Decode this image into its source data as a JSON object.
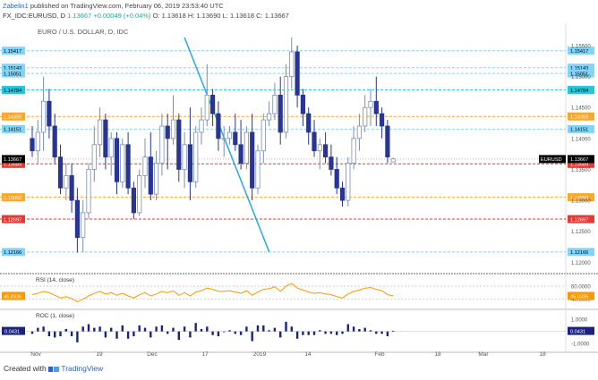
{
  "header": {
    "author": "Zabelin1",
    "published_text": "published on TradingView.com, February 06, 2019 23:53:40 UTC",
    "symbol": "FX_IDC:EURUSD, D",
    "last": "1.13667",
    "change": "+0.00049 (+0.04%)",
    "ohlc": "O: 1.13618  H: 1.13690  L: 1.13618  C: 1.13667"
  },
  "main_title": "EURO / U.S. DOLLAR, D, IDC",
  "footer": {
    "created_with": "Created with",
    "brand": "TradingView"
  },
  "colors": {
    "bear": "#283593",
    "bull_fill": "#ffffff",
    "bull_border": "#7b8fb3",
    "sky": "#81d4fa",
    "teal": "#26c6da",
    "orange": "#ffa726",
    "red": "#e53935",
    "trend": "#29a8e0",
    "rsi": "#ff9800",
    "roc": "#1a237e"
  },
  "chart_data": {
    "type": "candlestick",
    "title": "EURO / U.S. DOLLAR, D, IDC",
    "x_labels": [
      "Nov",
      "19",
      "Dec",
      "17",
      "2019",
      "14",
      "Feb",
      "18",
      "Mar",
      "18"
    ],
    "price_ylim": [
      1.1186,
      1.1563
    ],
    "y_ticks": [
      "1.15500",
      "1.15000",
      "1.14500",
      "1.14000",
      "1.13500",
      "1.13000",
      "1.12500",
      "1.12000"
    ],
    "last_price": "1.13667",
    "last_label": "EURUSD",
    "levels": [
      {
        "value": 1.15417,
        "label": "1.15417",
        "style": "sky"
      },
      {
        "value": 1.15143,
        "label": "1.15143",
        "style": "sky"
      },
      {
        "value": 1.15051,
        "label": "1.15051",
        "style": "sky"
      },
      {
        "value": 1.14784,
        "label": "1.14784",
        "style": "teal"
      },
      {
        "value": 1.14355,
        "label": "1.14355",
        "style": "orange"
      },
      {
        "value": 1.14151,
        "label": "1.14151",
        "style": "sky"
      },
      {
        "value": 1.13589,
        "label": "1.13589",
        "style": "red"
      },
      {
        "value": 1.1305,
        "label": "1.13050",
        "style": "orange"
      },
      {
        "value": 1.12697,
        "label": "1.12697",
        "style": "red"
      },
      {
        "value": 1.12166,
        "label": "1.12166",
        "style": "sky"
      }
    ],
    "trendline": [
      [
        27,
        1.1563
      ],
      [
        42,
        1.1217
      ]
    ],
    "candles": [
      [
        1.14,
        1.142,
        1.137,
        1.138
      ],
      [
        1.138,
        1.143,
        1.136,
        1.141
      ],
      [
        1.141,
        1.15,
        1.138,
        1.146
      ],
      [
        1.146,
        1.148,
        1.14,
        1.142
      ],
      [
        1.142,
        1.144,
        1.136,
        1.137
      ],
      [
        1.137,
        1.139,
        1.131,
        1.132
      ],
      [
        1.132,
        1.136,
        1.13,
        1.134
      ],
      [
        1.134,
        1.136,
        1.128,
        1.13
      ],
      [
        1.13,
        1.132,
        1.1216,
        1.124
      ],
      [
        1.124,
        1.13,
        1.1216,
        1.128
      ],
      [
        1.128,
        1.136,
        1.127,
        1.135
      ],
      [
        1.135,
        1.142,
        1.133,
        1.139
      ],
      [
        1.139,
        1.145,
        1.137,
        1.143
      ],
      [
        1.143,
        1.144,
        1.135,
        1.137
      ],
      [
        1.137,
        1.141,
        1.134,
        1.14
      ],
      [
        1.14,
        1.141,
        1.131,
        1.133
      ],
      [
        1.133,
        1.14,
        1.132,
        1.139
      ],
      [
        1.139,
        1.141,
        1.131,
        1.132
      ],
      [
        1.132,
        1.133,
        1.127,
        1.128
      ],
      [
        1.128,
        1.135,
        1.1275,
        1.134
      ],
      [
        1.134,
        1.14,
        1.132,
        1.137
      ],
      [
        1.137,
        1.141,
        1.13,
        1.131
      ],
      [
        1.131,
        1.138,
        1.13,
        1.136
      ],
      [
        1.136,
        1.144,
        1.134,
        1.142
      ],
      [
        1.142,
        1.144,
        1.135,
        1.14
      ],
      [
        1.14,
        1.147,
        1.139,
        1.143
      ],
      [
        1.143,
        1.144,
        1.133,
        1.135
      ],
      [
        1.135,
        1.141,
        1.132,
        1.139
      ],
      [
        1.139,
        1.145,
        1.13,
        1.133
      ],
      [
        1.133,
        1.142,
        1.132,
        1.141
      ],
      [
        1.141,
        1.145,
        1.139,
        1.143
      ],
      [
        1.143,
        1.152,
        1.142,
        1.147
      ],
      [
        1.147,
        1.148,
        1.142,
        1.144
      ],
      [
        1.144,
        1.146,
        1.138,
        1.14
      ],
      [
        1.14,
        1.142,
        1.137,
        1.14
      ],
      [
        1.14,
        1.142,
        1.139,
        1.141
      ],
      [
        1.141,
        1.144,
        1.138,
        1.139
      ],
      [
        1.139,
        1.143,
        1.135,
        1.136
      ],
      [
        1.136,
        1.142,
        1.135,
        1.141
      ],
      [
        1.141,
        1.144,
        1.13,
        1.132
      ],
      [
        1.132,
        1.139,
        1.131,
        1.138
      ],
      [
        1.138,
        1.144,
        1.136,
        1.143
      ],
      [
        1.143,
        1.146,
        1.142,
        1.144
      ],
      [
        1.144,
        1.149,
        1.143,
        1.147
      ],
      [
        1.147,
        1.15,
        1.139,
        1.141
      ],
      [
        1.141,
        1.152,
        1.14,
        1.15
      ],
      [
        1.15,
        1.1563,
        1.148,
        1.154
      ],
      [
        1.154,
        1.155,
        1.145,
        1.147
      ],
      [
        1.147,
        1.148,
        1.142,
        1.144
      ],
      [
        1.144,
        1.145,
        1.139,
        1.141
      ],
      [
        1.141,
        1.143,
        1.137,
        1.138
      ],
      [
        1.138,
        1.14,
        1.135,
        1.139
      ],
      [
        1.139,
        1.141,
        1.136,
        1.137
      ],
      [
        1.137,
        1.139,
        1.134,
        1.135
      ],
      [
        1.135,
        1.137,
        1.131,
        1.132
      ],
      [
        1.132,
        1.133,
        1.129,
        1.13
      ],
      [
        1.13,
        1.137,
        1.129,
        1.136
      ],
      [
        1.136,
        1.142,
        1.135,
        1.14
      ],
      [
        1.14,
        1.144,
        1.138,
        1.142
      ],
      [
        1.142,
        1.147,
        1.141,
        1.145
      ],
      [
        1.145,
        1.148,
        1.142,
        1.146
      ],
      [
        1.146,
        1.15,
        1.142,
        1.144
      ],
      [
        1.144,
        1.145,
        1.14,
        1.142
      ],
      [
        1.142,
        1.143,
        1.136,
        1.137
      ],
      [
        1.1362,
        1.1369,
        1.1362,
        1.1367
      ]
    ],
    "rsi": {
      "label": "RSI (14, close)",
      "value": 45.0335,
      "value_label": "45.0335",
      "ylim": [
        30,
        75
      ],
      "ticks": [
        "60.0000",
        "40.0000"
      ],
      "values": [
        47,
        49,
        52,
        50,
        46,
        42,
        44,
        41,
        36,
        40,
        45,
        49,
        52,
        48,
        50,
        46,
        49,
        45,
        42,
        47,
        50,
        45,
        48,
        52,
        50,
        53,
        46,
        50,
        45,
        51,
        53,
        57,
        55,
        52,
        52,
        53,
        51,
        49,
        53,
        46,
        51,
        55,
        56,
        59,
        52,
        60,
        64,
        57,
        54,
        51,
        49,
        50,
        48,
        47,
        44,
        42,
        48,
        52,
        54,
        57,
        58,
        55,
        53,
        47,
        45.0335
      ]
    },
    "roc": {
      "label": "ROC (1, close)",
      "value": 0.0431,
      "value_label": "0.0431",
      "ylim": [
        -1.5,
        1.6
      ],
      "ticks": [
        "1.0000",
        "-1.0000"
      ],
      "values": [
        -0.2,
        0.3,
        0.4,
        -0.4,
        -0.5,
        -0.4,
        0.2,
        -0.4,
        -0.9,
        0.4,
        0.6,
        0.3,
        0.4,
        -0.5,
        0.3,
        -0.6,
        0.5,
        -0.6,
        -0.4,
        0.5,
        0.3,
        -0.5,
        0.4,
        0.5,
        -0.2,
        0.3,
        -0.7,
        0.4,
        -0.5,
        0.7,
        0.2,
        0.4,
        -0.3,
        -0.4,
        0.0,
        0.1,
        -0.2,
        -0.3,
        0.4,
        -0.8,
        0.5,
        0.5,
        0.1,
        0.3,
        -0.5,
        0.8,
        0.4,
        -0.6,
        -0.3,
        -0.3,
        -0.3,
        0.1,
        -0.2,
        -0.2,
        -0.3,
        -0.2,
        0.6,
        0.4,
        0.2,
        0.3,
        0.1,
        -0.2,
        -0.2,
        -0.4,
        0.0431
      ]
    }
  }
}
